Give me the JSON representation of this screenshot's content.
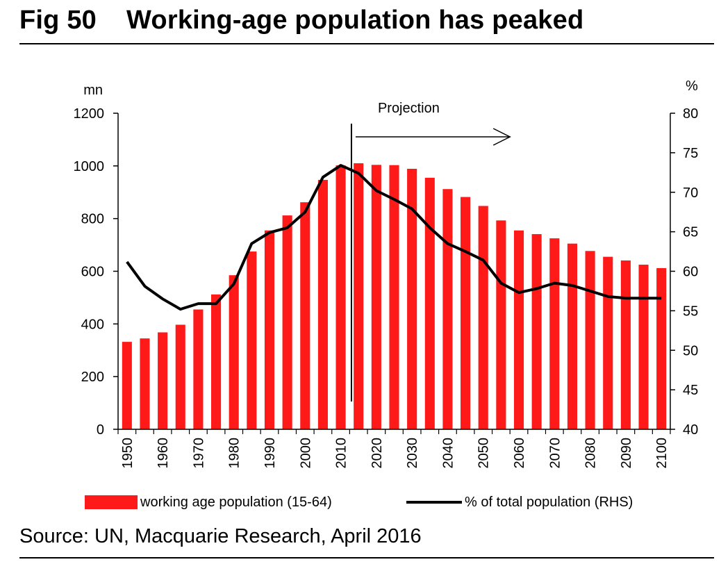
{
  "figure": {
    "title": "Fig 50    Working-age population has peaked",
    "source": "Source: UN, Macquarie Research, April 2016"
  },
  "colors": {
    "bar": "#ff1a1a",
    "line": "#000000"
  },
  "chart_data": {
    "type": "bar",
    "title": "",
    "left_axis": {
      "unit": "mn",
      "ylim": [
        0,
        1200
      ],
      "ticks": [
        0,
        200,
        400,
        600,
        800,
        1000,
        1200
      ]
    },
    "right_axis": {
      "unit": "%",
      "ylim": [
        40,
        80
      ],
      "ticks": [
        40,
        45,
        50,
        55,
        60,
        65,
        70,
        75,
        80
      ]
    },
    "x_ticks": [
      "1950",
      "1960",
      "1970",
      "1980",
      "1990",
      "2000",
      "2010",
      "2020",
      "2030",
      "2040",
      "2050",
      "2060",
      "2070",
      "2080",
      "2090",
      "2100"
    ],
    "categories": [
      "1950",
      "1955",
      "1960",
      "1965",
      "1970",
      "1975",
      "1980",
      "1985",
      "1990",
      "1995",
      "2000",
      "2005",
      "2010",
      "2015",
      "2020",
      "2025",
      "2030",
      "2035",
      "2040",
      "2045",
      "2050",
      "2055",
      "2060",
      "2065",
      "2070",
      "2075",
      "2080",
      "2085",
      "2090",
      "2095",
      "2100"
    ],
    "series": [
      {
        "name": "working age population  (15-64)",
        "type": "bar",
        "axis": "left",
        "values": [
          332,
          345,
          368,
          397,
          455,
          512,
          585,
          675,
          755,
          812,
          862,
          947,
          1002,
          1010,
          1004,
          1003,
          989,
          955,
          912,
          882,
          848,
          793,
          755,
          741,
          725,
          705,
          677,
          655,
          641,
          625,
          612
        ]
      },
      {
        "name": "% of total population (RHS)",
        "type": "line",
        "axis": "right",
        "values": [
          61.2,
          58.1,
          56.5,
          55.2,
          55.9,
          55.9,
          58.4,
          63.5,
          64.9,
          65.5,
          67.5,
          71.9,
          73.4,
          72.4,
          70.2,
          69.1,
          67.9,
          65.5,
          63.5,
          62.5,
          61.4,
          58.5,
          57.3,
          57.8,
          58.5,
          58.2,
          57.5,
          56.8,
          56.6,
          56.6,
          56.6
        ]
      }
    ],
    "annotation": {
      "label": "Projection",
      "from": "2013",
      "to": "2060"
    },
    "legend_position": "bottom",
    "grid": false
  }
}
